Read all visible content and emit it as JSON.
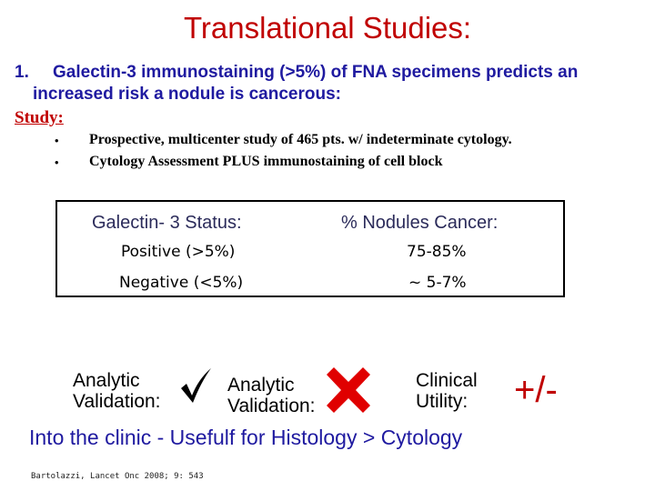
{
  "title": "Translational Studies:",
  "point1": {
    "number": "1.",
    "line1": "Galectin-3 immunostaining (>5%) of FNA specimens predicts an",
    "line2": "increased risk a nodule is cancerous:"
  },
  "study_label": "Study:",
  "bullets": [
    {
      "marker": "•",
      "text": "Prospective, multicenter study of 465 pts. w/ indeterminate cytology."
    },
    {
      "marker": "•",
      "text": "Cytology Assessment PLUS immunostaining of cell block"
    }
  ],
  "table": {
    "headers": [
      "Galectin- 3 Status:",
      "% Nodules Cancer:"
    ],
    "rows": [
      [
        "Positive (>5%)",
        "75-85%"
      ],
      [
        "Negative (<5%)",
        "~ 5-7%"
      ]
    ]
  },
  "validation": {
    "analytic_1": [
      "Analytic",
      "Validation:"
    ],
    "analytic_2": [
      "Analytic",
      "Validation:"
    ],
    "clinical": [
      "Clinical",
      "Utility:"
    ],
    "clinical_mark": "+/-",
    "check_icon": "checkmark-icon",
    "x_icon": "red-x-icon",
    "x_color": "#e00000"
  },
  "conclusion": "Into the clinic - Usefulf for Histology > Cytology",
  "citation": "Bartolazzi, Lancet Onc 2008; 9: 543",
  "colors": {
    "title": "#c00000",
    "point": "#1f1aa0",
    "study": "#c00000"
  }
}
